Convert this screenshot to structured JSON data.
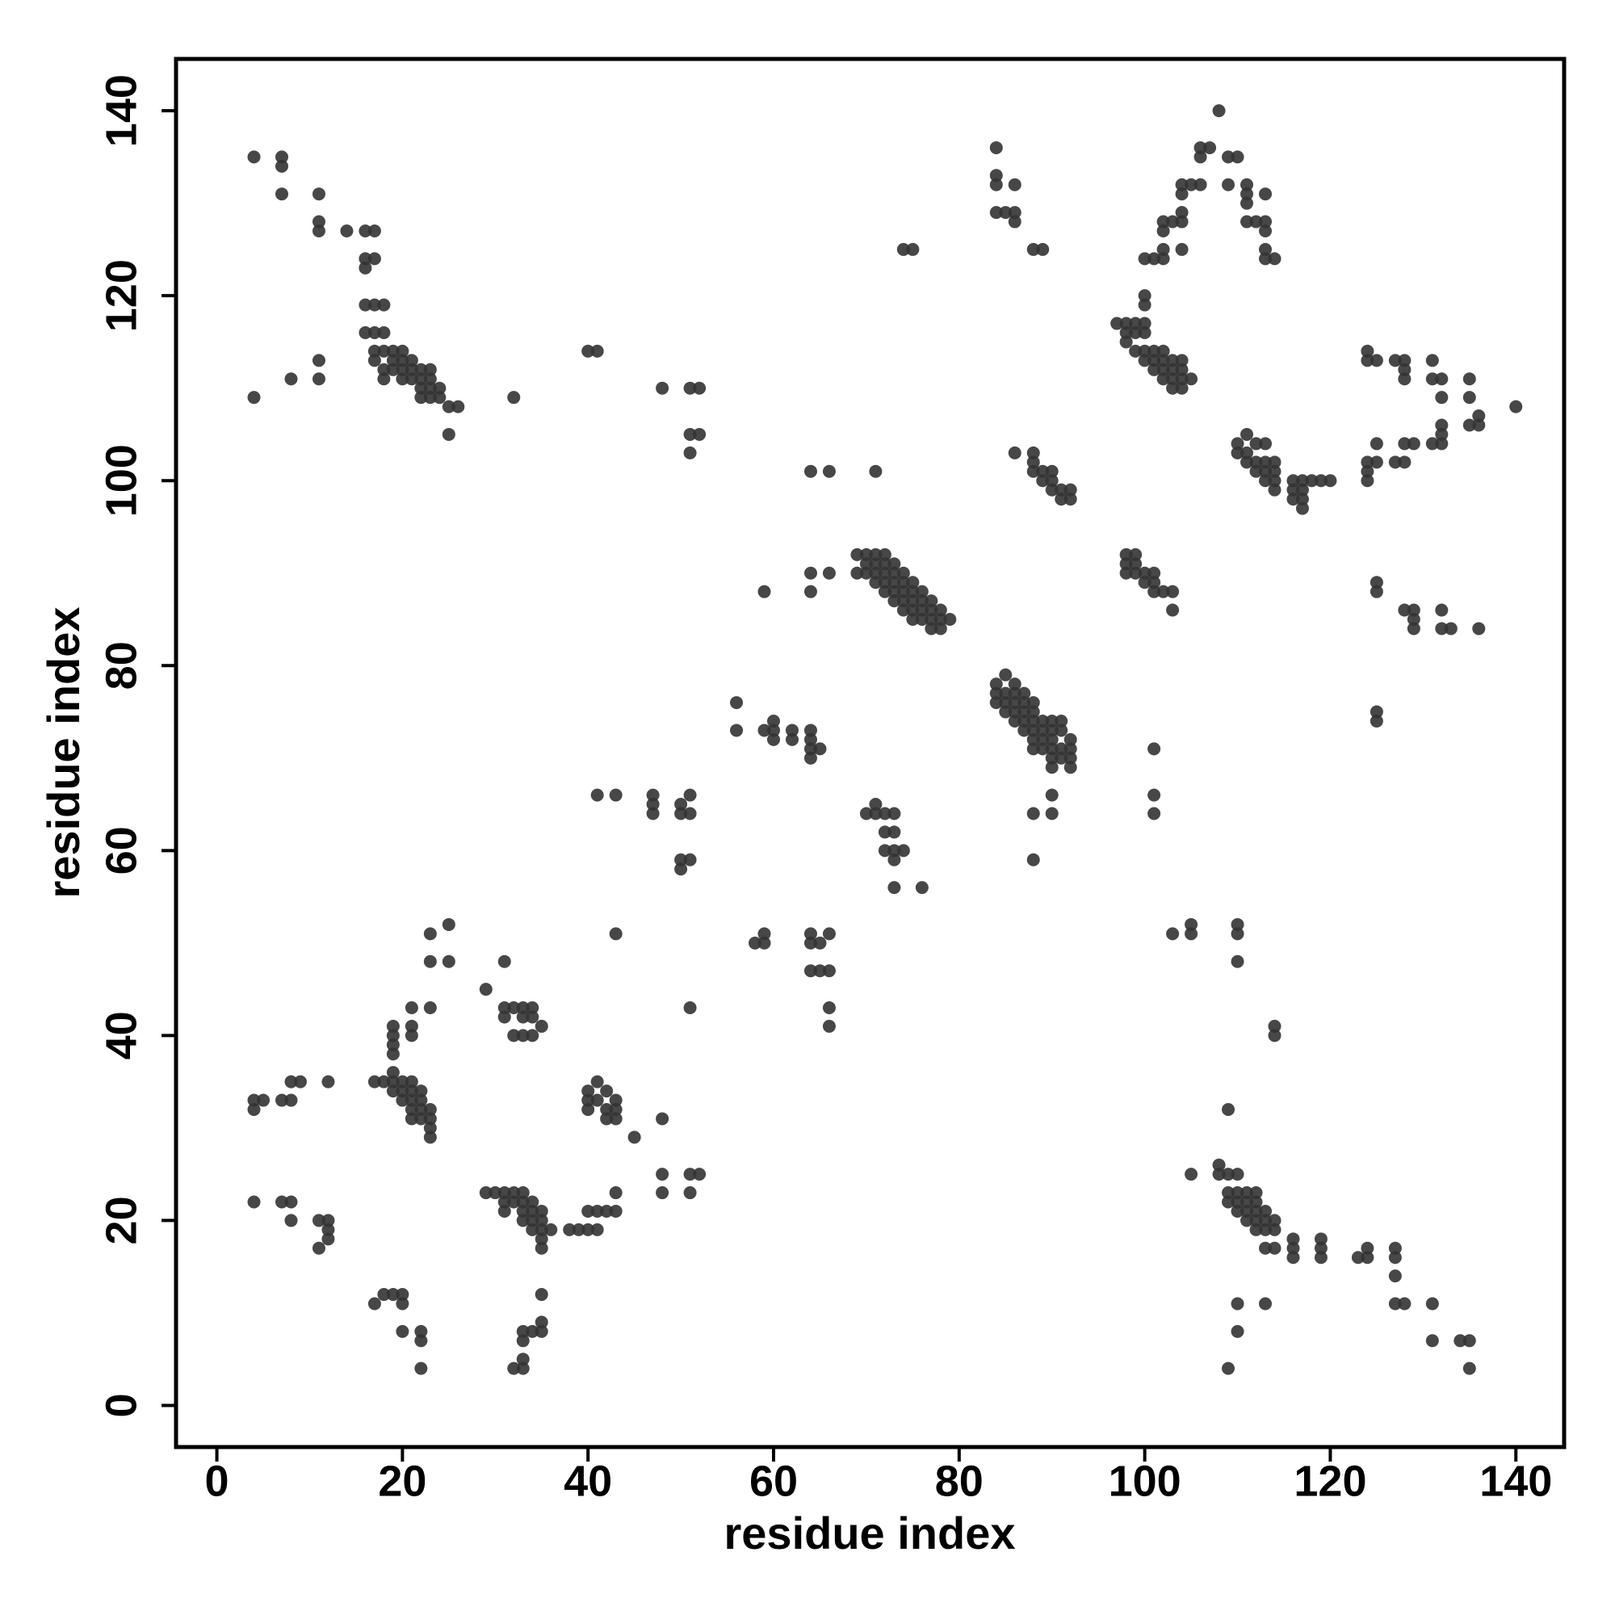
{
  "chart_data": {
    "type": "scatter",
    "x_label": "residue index",
    "y_label": "residue index",
    "xlim": [
      -4.4,
      145.2
    ],
    "ylim": [
      -4.5,
      145.6
    ],
    "xticks": [
      0,
      20,
      40,
      60,
      80,
      100,
      120,
      140
    ],
    "yticks": [
      0,
      20,
      40,
      60,
      80,
      100,
      120,
      140
    ],
    "grid": false,
    "series": [
      {
        "color": "#333333",
        "x": [
          4,
          7,
          7,
          7,
          11,
          11,
          11,
          14,
          16,
          17,
          16,
          17,
          16,
          16,
          17,
          18,
          16,
          17,
          18,
          17,
          18,
          19,
          20,
          17,
          19,
          20,
          21,
          18,
          19,
          20,
          21,
          22,
          23,
          18,
          20,
          21,
          22,
          23,
          22,
          23,
          24,
          22,
          23,
          24,
          25,
          26,
          25,
          4,
          8,
          11,
          11,
          32,
          40,
          41,
          48,
          51,
          52,
          51,
          52,
          51,
          4,
          5,
          4,
          7,
          8,
          8,
          9,
          12,
          4,
          7,
          8,
          8,
          11,
          12,
          12,
          12,
          11,
          17,
          18,
          19,
          19,
          20,
          21,
          19,
          20,
          21,
          22,
          20,
          21,
          22,
          21,
          22,
          23,
          21,
          22,
          23,
          23,
          23,
          19,
          19,
          19,
          19,
          21,
          21,
          21,
          23,
          23,
          23,
          25,
          25,
          29,
          31,
          31,
          32,
          33,
          34,
          31,
          33,
          34,
          32,
          33,
          34,
          35,
          29,
          30,
          31,
          32,
          33,
          31,
          32,
          33,
          34,
          31,
          33,
          34,
          35,
          33,
          34,
          35,
          34,
          35,
          36,
          35,
          35,
          38,
          39,
          40,
          41,
          40,
          41,
          42,
          43,
          43,
          40,
          41,
          40,
          41,
          42,
          43,
          40,
          42,
          43,
          42,
          43,
          45,
          48,
          48,
          48,
          51,
          51,
          52,
          17,
          18,
          19,
          20,
          20,
          20,
          22,
          22,
          22,
          32,
          33,
          33,
          33,
          33,
          34,
          35,
          35,
          35,
          43,
          41,
          43,
          47,
          47,
          47,
          50,
          51,
          50,
          51,
          50,
          51,
          50,
          51,
          56,
          56,
          59,
          60,
          60,
          60,
          62,
          62,
          64,
          64,
          64,
          65,
          64,
          59,
          64,
          64,
          66,
          64,
          66,
          71,
          58,
          59,
          59,
          64,
          64,
          65,
          66,
          64,
          65,
          66,
          66,
          66,
          69,
          70,
          71,
          72,
          70,
          71,
          72,
          73,
          69,
          70,
          71,
          72,
          73,
          74,
          71,
          72,
          73,
          74,
          75,
          72,
          73,
          74,
          75,
          76,
          73,
          74,
          75,
          76,
          77,
          74,
          75,
          76,
          77,
          78,
          75,
          76,
          77,
          78,
          79,
          77,
          78,
          70,
          71,
          71,
          72,
          73,
          72,
          73,
          72,
          73,
          74,
          73,
          73,
          76,
          74,
          75,
          84,
          84,
          84,
          86,
          84,
          85,
          86,
          86,
          88,
          89,
          85,
          84,
          86,
          84,
          85,
          86,
          87,
          84,
          85,
          86,
          87,
          88,
          85,
          86,
          87,
          88,
          86,
          87,
          88,
          89,
          90,
          91,
          87,
          88,
          89,
          90,
          91,
          88,
          89,
          90,
          92,
          88,
          89,
          90,
          91,
          92,
          90,
          91,
          92,
          90,
          92,
          90,
          88,
          90,
          88,
          86,
          88,
          88,
          88,
          89,
          90,
          89,
          90,
          90,
          91,
          92,
          91,
          92,
          98,
          99,
          98,
          99,
          98,
          99,
          100,
          101,
          100,
          101,
          101,
          102,
          103,
          103,
          101,
          101,
          101,
          103,
          105,
          105,
          110,
          110,
          110,
          114,
          114,
          97,
          98,
          99,
          100,
          98,
          99,
          100,
          98,
          100,
          100,
          99,
          100,
          101,
          102,
          100,
          101,
          102,
          103,
          104,
          101,
          102,
          103,
          104,
          102,
          103,
          104,
          105,
          103,
          104,
          100,
          101,
          102,
          102,
          102,
          102,
          103,
          104,
          104,
          104,
          104,
          105,
          106,
          104,
          106,
          106,
          107,
          109,
          110,
          109,
          111,
          111,
          111,
          111,
          112,
          113,
          113,
          113,
          113,
          114,
          113,
          108,
          110,
          111,
          110,
          111,
          112,
          113,
          111,
          112,
          113,
          114,
          112,
          113,
          114,
          113,
          114,
          114,
          116,
          117,
          118,
          116,
          117,
          116,
          117,
          117,
          119,
          120,
          124,
          125,
          124,
          127,
          128,
          128,
          128,
          131,
          131,
          132,
          132,
          135,
          135,
          135,
          136,
          136,
          140,
          124,
          125,
          124,
          124,
          125,
          127,
          128,
          128,
          129,
          131,
          132,
          132,
          132,
          125,
          125,
          128,
          129,
          129,
          129,
          132,
          132,
          133,
          136,
          125,
          125,
          109,
          108,
          109,
          110,
          105,
          108,
          109,
          110,
          111,
          112,
          109,
          110,
          111,
          112,
          110,
          111,
          112,
          113,
          111,
          112,
          113,
          114,
          112,
          113,
          114,
          113,
          114,
          116,
          116,
          116,
          119,
          119,
          119,
          123,
          124,
          124,
          127,
          127,
          127,
          127,
          128,
          131,
          131,
          134,
          135,
          135,
          109,
          110,
          110,
          113
        ],
        "values": [
          135,
          135,
          134,
          131,
          131,
          128,
          127,
          127,
          127,
          127,
          124,
          124,
          123,
          119,
          119,
          119,
          116,
          116,
          116,
          114,
          114,
          114,
          114,
          113,
          113,
          113,
          113,
          112,
          112,
          112,
          112,
          112,
          112,
          111,
          111,
          111,
          111,
          111,
          110,
          110,
          110,
          109,
          109,
          109,
          108,
          108,
          105,
          109,
          111,
          111,
          113,
          109,
          114,
          114,
          110,
          110,
          110,
          105,
          105,
          103,
          33,
          33,
          32,
          33,
          33,
          35,
          35,
          35,
          22,
          22,
          22,
          20,
          20,
          20,
          19,
          18,
          17,
          35,
          35,
          36,
          35,
          35,
          35,
          34,
          34,
          34,
          34,
          33,
          33,
          33,
          32,
          32,
          32,
          31,
          31,
          31,
          30,
          29,
          41,
          40,
          39,
          38,
          43,
          41,
          40,
          43,
          48,
          51,
          52,
          48,
          45,
          48,
          43,
          43,
          43,
          43,
          42,
          42,
          42,
          40,
          40,
          40,
          41,
          23,
          23,
          23,
          23,
          23,
          22,
          22,
          22,
          22,
          21,
          21,
          21,
          21,
          20,
          20,
          20,
          19,
          19,
          19,
          18,
          17,
          19,
          19,
          19,
          19,
          21,
          21,
          21,
          21,
          23,
          34,
          35,
          33,
          33,
          34,
          33,
          32,
          32,
          32,
          31,
          31,
          29,
          31,
          25,
          23,
          25,
          23,
          25,
          11,
          12,
          12,
          12,
          11,
          8,
          8,
          7,
          4,
          4,
          4,
          5,
          7,
          8,
          8,
          8,
          9,
          12,
          51,
          66,
          66,
          66,
          65,
          64,
          65,
          66,
          64,
          64,
          59,
          59,
          58,
          43,
          76,
          73,
          73,
          74,
          73,
          72,
          73,
          72,
          73,
          72,
          71,
          71,
          70,
          88,
          90,
          88,
          90,
          101,
          101,
          101,
          50,
          50,
          51,
          51,
          50,
          50,
          51,
          47,
          47,
          47,
          43,
          41,
          92,
          92,
          92,
          92,
          91,
          91,
          91,
          91,
          90,
          90,
          90,
          90,
          90,
          90,
          89,
          89,
          89,
          89,
          89,
          88,
          88,
          88,
          88,
          88,
          87,
          87,
          87,
          87,
          87,
          86,
          86,
          86,
          86,
          86,
          85,
          85,
          85,
          85,
          85,
          84,
          84,
          64,
          65,
          64,
          64,
          64,
          62,
          62,
          60,
          60,
          60,
          59,
          56,
          56,
          125,
          125,
          136,
          133,
          132,
          132,
          129,
          129,
          129,
          128,
          125,
          125,
          79,
          78,
          78,
          77,
          77,
          77,
          77,
          76,
          76,
          76,
          76,
          76,
          75,
          75,
          75,
          75,
          74,
          74,
          74,
          74,
          74,
          74,
          73,
          73,
          73,
          73,
          73,
          72,
          72,
          72,
          72,
          71,
          71,
          71,
          71,
          71,
          70,
          70,
          70,
          69,
          69,
          66,
          64,
          64,
          59,
          103,
          103,
          102,
          101,
          101,
          101,
          100,
          100,
          99,
          99,
          99,
          98,
          98,
          92,
          92,
          91,
          91,
          90,
          90,
          90,
          90,
          89,
          89,
          88,
          88,
          88,
          86,
          71,
          66,
          64,
          51,
          52,
          51,
          52,
          51,
          48,
          41,
          40,
          117,
          117,
          117,
          117,
          116,
          116,
          116,
          115,
          119,
          120,
          114,
          114,
          114,
          114,
          113,
          113,
          113,
          113,
          113,
          112,
          112,
          112,
          112,
          111,
          111,
          111,
          111,
          110,
          110,
          124,
          124,
          124,
          125,
          127,
          128,
          128,
          128,
          129,
          131,
          132,
          132,
          132,
          125,
          135,
          136,
          136,
          135,
          135,
          132,
          132,
          131,
          130,
          128,
          128,
          128,
          127,
          125,
          124,
          124,
          131,
          140,
          104,
          105,
          103,
          103,
          104,
          104,
          102,
          102,
          102,
          102,
          101,
          101,
          101,
          100,
          100,
          99,
          100,
          100,
          100,
          99,
          99,
          98,
          98,
          97,
          100,
          100,
          114,
          113,
          113,
          113,
          113,
          112,
          111,
          113,
          111,
          111,
          109,
          111,
          109,
          106,
          107,
          106,
          108,
          102,
          102,
          101,
          100,
          104,
          102,
          102,
          104,
          104,
          104,
          104,
          105,
          106,
          89,
          88,
          86,
          86,
          85,
          84,
          86,
          84,
          84,
          84,
          75,
          74,
          32,
          26,
          25,
          25,
          25,
          25,
          23,
          23,
          23,
          23,
          22,
          22,
          22,
          22,
          21,
          21,
          21,
          21,
          20,
          20,
          20,
          20,
          19,
          19,
          19,
          17,
          17,
          18,
          17,
          16,
          18,
          17,
          16,
          16,
          16,
          17,
          17,
          16,
          14,
          11,
          11,
          11,
          7,
          7,
          7,
          4,
          4,
          11,
          8,
          11
        ]
      }
    ]
  }
}
